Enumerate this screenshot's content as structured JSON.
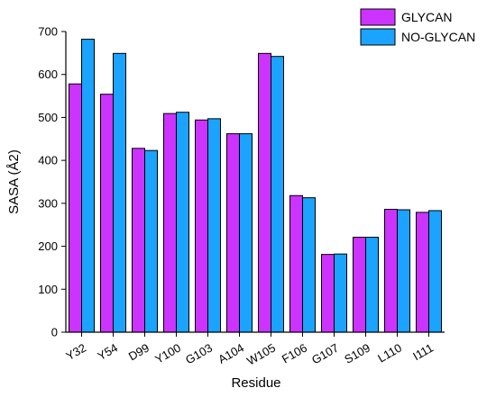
{
  "chart_data": {
    "type": "bar",
    "title": "",
    "xlabel": "Residue",
    "ylabel": "SASA (Å2)",
    "ylim": [
      0,
      700
    ],
    "yticks": [
      "0",
      "100",
      "200",
      "300",
      "400",
      "500",
      "600",
      "700"
    ],
    "grid": false,
    "legend_position": "top-right",
    "categories": [
      "Y32",
      "Y54",
      "D99",
      "Y100",
      "G103",
      "A104",
      "W105",
      "F106",
      "G107",
      "S109",
      "L110",
      "I111"
    ],
    "series": [
      {
        "name": "GLYCAN",
        "color": "#CC33FF",
        "values": [
          578,
          554,
          428,
          509,
          494,
          462,
          649,
          318,
          181,
          221,
          286,
          279
        ]
      },
      {
        "name": "NO-GLYCAN",
        "color": "#1AA3FF",
        "values": [
          682,
          649,
          423,
          512,
          497,
          462,
          642,
          313,
          182,
          221,
          285,
          283
        ]
      }
    ]
  }
}
